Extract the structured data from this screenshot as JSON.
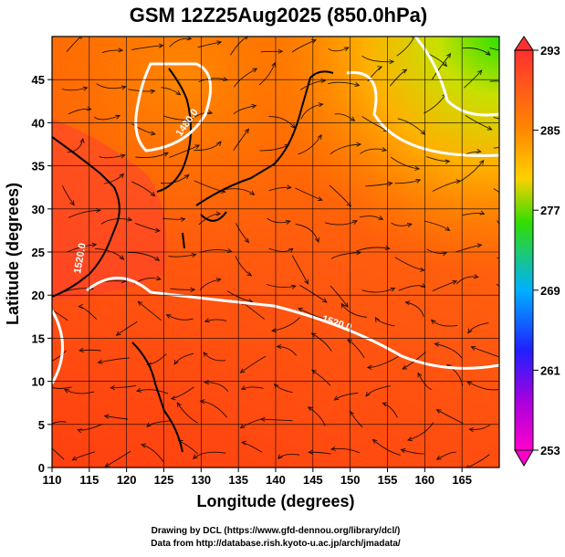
{
  "title": "GSM 12Z25Aug2025 (850.0hPa)",
  "axes": {
    "xlabel": "Longitude (degrees)",
    "ylabel": "Latitude  (degrees)",
    "xticks": [
      "110",
      "115",
      "120",
      "125",
      "130",
      "135",
      "140",
      "145",
      "150",
      "155",
      "160",
      "165"
    ],
    "yticks": [
      "0",
      "5",
      "10",
      "15",
      "20",
      "25",
      "30",
      "35",
      "40",
      "45"
    ]
  },
  "colorbar": {
    "labels": [
      "293",
      "285",
      "277",
      "269",
      "261",
      "253"
    ],
    "colors": [
      "#ff3030",
      "#ff8800",
      "#ffd000",
      "#33dd00",
      "#00b0ff",
      "#2020ff",
      "#aa00dd",
      "#ff00cc"
    ]
  },
  "contour_labels": [
    "1520.0",
    "1480.0",
    "1520.0"
  ],
  "footer": {
    "line1": "Drawing by DCL (https://www.gfd-dennou.org/library/dcl/)",
    "line2": "Data from http://database.rish.kyoto-u.ac.jp/arch/jmadata/"
  },
  "chart_data": {
    "type": "heatmap",
    "title": "GSM 12Z25Aug2025 (850.0hPa)",
    "xlabel": "Longitude (degrees)",
    "ylabel": "Latitude  (degrees)",
    "xlim": [
      110,
      170
    ],
    "ylim": [
      0,
      50
    ],
    "colorbar_range": [
      253,
      293
    ],
    "colorbar_ticks": [
      293,
      285,
      277,
      269,
      261,
      253
    ],
    "contour_values": [
      1480.0,
      1520.0
    ]
  }
}
